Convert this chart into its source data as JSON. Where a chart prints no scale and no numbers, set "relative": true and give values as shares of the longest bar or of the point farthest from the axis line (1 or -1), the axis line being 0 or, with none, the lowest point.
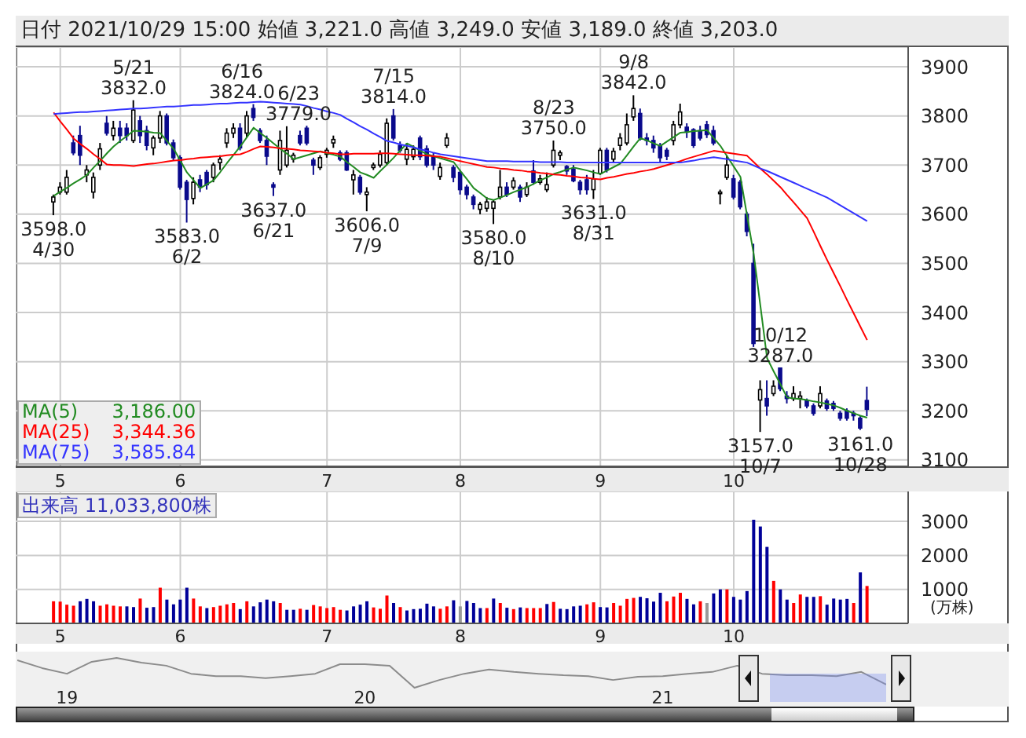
{
  "chart_data": [
    {
      "type": "candlestick",
      "title": "日付 2021/10/29 15:00 始値 3,221.0 高値 3,249.0 安値 3,189.0 終値 3,203.0",
      "colors": [
        "#ffffff",
        "#ffffff",
        "#ffffff",
        "#0a0a8c",
        "#0a0a8c",
        "#ffffff",
        "#ffffff",
        "#ffffff",
        "#0a0a8c",
        "#ffffff",
        "#0a0a8c",
        "#0a0a8c",
        "#ffffff",
        "#0a0a8c",
        "#0a0a8c",
        "#ffffff",
        "#ffffff",
        "#0a0a8c",
        "#0a0a8c",
        "#0a0a8c",
        "#0a0a8c",
        "#ffffff",
        "#0a0a8c",
        "#0a0a8c",
        "#ffffff",
        "#ffffff",
        "#ffffff",
        "#ffffff",
        "#0a0a8c",
        "#ffffff",
        "#0a0a8c",
        "#0a0a8c",
        "#0a0a8c",
        "#0a0a8c",
        "#ffffff",
        "#ffffff",
        "#ffffff",
        "#0a0a8c",
        "#0a0a8c",
        "#0a0a8c",
        "#ffffff",
        "#ffffff",
        "#ffffff",
        "#0a0a8c",
        "#0a0a8c",
        "#ffffff",
        "#0a0a8c",
        "#ffffff",
        "#ffffff",
        "#ffffff",
        "#ffffff",
        "#0a0a8c",
        "#0a0a8c",
        "#ffffff",
        "#ffffff",
        "#0a0a8c",
        "#0a0a8c",
        "#0a0a8c",
        "#ffffff",
        "#ffffff",
        "#0a0a8c",
        "#0a0a8c",
        "#0a0a8c",
        "#0a0a8c",
        "#ffffff",
        "#ffffff",
        "#ffffff",
        "#ffffff",
        "#0a0a8c",
        "#ffffff",
        "#0a0a8c",
        "#ffffff",
        "#0a0a8c",
        "#ffffff",
        "#ffffff",
        "#ffffff",
        "#ffffff",
        "#0a0a8c",
        "#0a0a8c",
        "#0a0a8c",
        "#0a0a8c",
        "#ffffff",
        "#ffffff",
        "#0a0a8c",
        "#ffffff",
        "#ffffff",
        "#ffffff",
        "#ffffff",
        "#0a0a8c",
        "#0a0a8c",
        "#0a0a8c",
        "#0a0a8c",
        "#0a0a8c",
        "#ffffff",
        "#ffffff",
        "#0a0a8c",
        "#0a0a8c",
        "#0a0a8c",
        "#0a0a8c",
        "#0a0a8c",
        "#ffffff",
        "#ffffff",
        "#0a0a8c",
        "#0a0a8c",
        "#0a0a8c",
        "#0a0a8c",
        "#ffffff",
        "#0a0a8c",
        "#ffffff",
        "#0a0a8c",
        "#0a0a8c",
        "#ffffff",
        "#ffffff",
        "#0a0a8c",
        "#0a0a8c",
        "#ffffff",
        "#0a0a8c",
        "#0a0a8c",
        "#0a0a8c",
        "#0a0a8c",
        "#0a0a8c",
        "#0a0a8c",
        "#0a0a8c"
      ],
      "categories": [
        null,
        "5",
        null,
        null,
        null,
        null,
        null,
        null,
        null,
        null,
        null,
        null,
        null,
        null,
        null,
        null,
        null,
        null,
        null,
        "6",
        null,
        null,
        null,
        null,
        null,
        null,
        null,
        null,
        null,
        null,
        null,
        null,
        null,
        null,
        null,
        null,
        null,
        null,
        null,
        null,
        null,
        "7",
        null,
        null,
        null,
        null,
        null,
        null,
        null,
        null,
        null,
        null,
        null,
        null,
        null,
        null,
        null,
        null,
        null,
        null,
        null,
        "8",
        null,
        null,
        null,
        null,
        null,
        null,
        null,
        null,
        null,
        null,
        null,
        null,
        null,
        null,
        null,
        null,
        null,
        null,
        null,
        null,
        "9",
        null,
        null,
        null,
        null,
        null,
        null,
        null,
        null,
        null,
        null,
        null,
        null,
        null,
        null,
        null,
        null,
        null,
        null,
        null,
        "10",
        null,
        null,
        null,
        null,
        null,
        null,
        null,
        null,
        null,
        null,
        null,
        null,
        null,
        null,
        null,
        null,
        null,
        null,
        null,
        null
      ],
      "ohlc": [
        [
          3625,
          3640,
          3598,
          3635
        ],
        [
          3645,
          3665,
          3640,
          3655
        ],
        [
          3645,
          3690,
          3640,
          3675
        ],
        [
          3745,
          3760,
          3720,
          3725
        ],
        [
          3760,
          3780,
          3700,
          3720
        ],
        [
          3680,
          3700,
          3665,
          3690
        ],
        [
          3645,
          3685,
          3632,
          3675
        ],
        [
          3700,
          3745,
          3690,
          3733
        ],
        [
          3785,
          3800,
          3760,
          3765
        ],
        [
          3760,
          3790,
          3750,
          3775
        ],
        [
          3775,
          3790,
          3745,
          3760
        ],
        [
          3775,
          3785,
          3750,
          3760
        ],
        [
          3750,
          3832,
          3745,
          3812
        ],
        [
          3790,
          3800,
          3745,
          3760
        ],
        [
          3770,
          3780,
          3730,
          3740
        ],
        [
          3735,
          3760,
          3720,
          3755
        ],
        [
          3755,
          3810,
          3745,
          3800
        ],
        [
          3800,
          3805,
          3740,
          3745
        ],
        [
          3745,
          3752,
          3710,
          3715
        ],
        [
          3715,
          3720,
          3650,
          3655
        ],
        [
          3665,
          3670,
          3583,
          3630
        ],
        [
          3632,
          3675,
          3620,
          3665
        ],
        [
          3670,
          3680,
          3645,
          3655
        ],
        [
          3685,
          3690,
          3650,
          3660
        ],
        [
          3675,
          3705,
          3665,
          3700
        ],
        [
          3705,
          3720,
          3690,
          3712
        ],
        [
          3745,
          3775,
          3735,
          3765
        ],
        [
          3765,
          3785,
          3755,
          3775
        ],
        [
          3775,
          3785,
          3730,
          3735
        ],
        [
          3765,
          3810,
          3755,
          3800
        ],
        [
          3815,
          3824,
          3790,
          3797
        ],
        [
          3770,
          3775,
          3745,
          3750
        ],
        [
          3750,
          3760,
          3700,
          3718
        ],
        [
          3660,
          3665,
          3637,
          3655
        ],
        [
          3690,
          3770,
          3680,
          3750
        ],
        [
          3700,
          3779,
          3695,
          3730
        ],
        [
          3712,
          3725,
          3705,
          3720
        ],
        [
          3760,
          3770,
          3740,
          3745
        ],
        [
          3775,
          3780,
          3740,
          3745
        ],
        [
          3710,
          3715,
          3680,
          3700
        ],
        [
          3695,
          3720,
          3690,
          3715
        ],
        [
          3722,
          3735,
          3715,
          3730
        ],
        [
          3745,
          3760,
          3735,
          3752
        ],
        [
          3725,
          3730,
          3708,
          3712
        ],
        [
          3725,
          3730,
          3688,
          3690
        ],
        [
          3670,
          3690,
          3640,
          3680
        ],
        [
          3675,
          3680,
          3640,
          3645
        ],
        [
          3640,
          3655,
          3606,
          3645
        ],
        [
          3695,
          3705,
          3690,
          3700
        ],
        [
          3700,
          3730,
          3695,
          3722
        ],
        [
          3705,
          3795,
          3700,
          3785
        ],
        [
          3800,
          3814,
          3750,
          3755
        ],
        [
          3740,
          3748,
          3725,
          3730
        ],
        [
          3712,
          3745,
          3700,
          3732
        ],
        [
          3717,
          3740,
          3710,
          3732
        ],
        [
          3755,
          3760,
          3710,
          3717
        ],
        [
          3733,
          3740,
          3695,
          3700
        ],
        [
          3717,
          3725,
          3690,
          3700
        ],
        [
          3677,
          3705,
          3670,
          3695
        ],
        [
          3740,
          3765,
          3735,
          3755
        ],
        [
          3695,
          3700,
          3665,
          3675
        ],
        [
          3685,
          3690,
          3640,
          3650
        ],
        [
          3655,
          3660,
          3630,
          3640
        ],
        [
          3635,
          3640,
          3610,
          3620
        ],
        [
          3610,
          3625,
          3600,
          3620
        ],
        [
          3612,
          3635,
          3605,
          3625
        ],
        [
          3612,
          3630,
          3580,
          3625
        ],
        [
          3635,
          3690,
          3630,
          3655
        ],
        [
          3655,
          3665,
          3635,
          3640
        ],
        [
          3655,
          3675,
          3650,
          3668
        ],
        [
          3655,
          3660,
          3625,
          3635
        ],
        [
          3640,
          3665,
          3635,
          3655
        ],
        [
          3688,
          3710,
          3660,
          3665
        ],
        [
          3665,
          3680,
          3660,
          3672
        ],
        [
          3650,
          3685,
          3645,
          3660
        ],
        [
          3700,
          3750,
          3695,
          3730
        ],
        [
          3720,
          3730,
          3710,
          3725
        ],
        [
          3697,
          3700,
          3680,
          3688
        ],
        [
          3692,
          3700,
          3665,
          3668
        ],
        [
          3665,
          3670,
          3640,
          3650
        ],
        [
          3670,
          3680,
          3640,
          3650
        ],
        [
          3650,
          3690,
          3631,
          3672
        ],
        [
          3683,
          3735,
          3680,
          3730
        ],
        [
          3730,
          3735,
          3685,
          3690
        ],
        [
          3712,
          3735,
          3705,
          3728
        ],
        [
          3740,
          3765,
          3730,
          3755
        ],
        [
          3745,
          3805,
          3740,
          3782
        ],
        [
          3798,
          3842,
          3790,
          3815
        ],
        [
          3805,
          3815,
          3750,
          3755
        ],
        [
          3755,
          3765,
          3740,
          3750
        ],
        [
          3750,
          3760,
          3725,
          3735
        ],
        [
          3740,
          3745,
          3705,
          3715
        ],
        [
          3730,
          3735,
          3710,
          3718
        ],
        [
          3750,
          3790,
          3740,
          3782
        ],
        [
          3782,
          3825,
          3775,
          3808
        ],
        [
          3777,
          3785,
          3755,
          3767
        ],
        [
          3772,
          3775,
          3735,
          3740
        ],
        [
          3770,
          3780,
          3750,
          3755
        ],
        [
          3782,
          3790,
          3755,
          3762
        ],
        [
          3770,
          3780,
          3740,
          3745
        ],
        [
          3643,
          3650,
          3620,
          3645
        ],
        [
          3675,
          3720,
          3670,
          3700
        ],
        [
          3672,
          3680,
          3630,
          3635
        ],
        [
          3665,
          3670,
          3610,
          3615
        ],
        [
          3600,
          3605,
          3555,
          3565
        ],
        [
          3500,
          3540,
          3330,
          3337
        ],
        [
          3222,
          3262,
          3157,
          3243
        ],
        [
          3225,
          3262,
          3190,
          3210
        ],
        [
          3235,
          3262,
          3230,
          3250
        ],
        [
          3287,
          3287,
          3240,
          3245
        ],
        [
          3230,
          3240,
          3215,
          3225
        ],
        [
          3225,
          3250,
          3220,
          3235
        ],
        [
          3225,
          3240,
          3205,
          3230
        ],
        [
          3220,
          3225,
          3205,
          3210
        ],
        [
          3210,
          3215,
          3190,
          3195
        ],
        [
          3210,
          3250,
          3205,
          3235
        ],
        [
          3220,
          3225,
          3200,
          3205
        ],
        [
          3215,
          3220,
          3200,
          3205
        ],
        [
          3195,
          3200,
          3180,
          3185
        ],
        [
          3200,
          3205,
          3180,
          3185
        ],
        [
          3195,
          3200,
          3180,
          3190
        ],
        [
          3185,
          3190,
          3161,
          3165
        ],
        [
          3221,
          3249,
          3189,
          3203
        ]
      ],
      "series": [
        {
          "name": "MA(5)",
          "type": "line",
          "color": "#228b22",
          "values": [
            3637,
            3646,
            3654,
            3663,
            3671,
            3680,
            3695,
            3709,
            3724,
            3738,
            3749,
            3759,
            3770,
            3769,
            3768,
            3766,
            3765,
            3749,
            3733,
            3709,
            3685,
            3669,
            3653,
            3661,
            3669,
            3686,
            3704,
            3721,
            3738,
            3757,
            3776,
            3765,
            3755,
            3744,
            3733,
            3723,
            3712,
            3716,
            3720,
            3724,
            3728,
            3724,
            3721,
            3717,
            3706,
            3696,
            3685,
            3680,
            3674,
            3688,
            3701,
            3715,
            3730,
            3744,
            3737,
            3729,
            3722,
            3718,
            3714,
            3710,
            3706,
            3688,
            3671,
            3653,
            3643,
            3632,
            3629,
            3634,
            3639,
            3645,
            3650,
            3655,
            3662,
            3669,
            3675,
            3682,
            3686,
            3691,
            3695,
            3692,
            3689,
            3685,
            3682,
            3689,
            3696,
            3703,
            3720,
            3738,
            3755,
            3750,
            3744,
            3739,
            3748,
            3757,
            3766,
            3767,
            3769,
            3770,
            3771,
            3755,
            3739,
            3718,
            3697,
            3676,
            3597,
            3518,
            3413,
            3307,
            3280,
            3254,
            3227,
            3225,
            3224,
            3222,
            3219,
            3217,
            3214,
            3211,
            3206,
            3200,
            3195,
            3190,
            3186
          ]
        },
        {
          "name": "MA(25)",
          "type": "line",
          "color": "#ff0000",
          "values": [
            3807,
            3789,
            3772,
            3754,
            3743,
            3733,
            3722,
            3712,
            3701,
            3700,
            3700,
            3699,
            3698,
            3700,
            3702,
            3703,
            3705,
            3707,
            3709,
            3710,
            3712,
            3713,
            3715,
            3716,
            3717,
            3718,
            3720,
            3721,
            3722,
            3727,
            3733,
            3738,
            3737,
            3736,
            3734,
            3733,
            3732,
            3730,
            3729,
            3728,
            3727,
            3725,
            3724,
            3722,
            3722,
            3723,
            3723,
            3723,
            3723,
            3724,
            3724,
            3723,
            3722,
            3721,
            3720,
            3720,
            3719,
            3718,
            3717,
            3714,
            3711,
            3708,
            3705,
            3702,
            3699,
            3696,
            3695,
            3693,
            3692,
            3690,
            3689,
            3687,
            3686,
            3684,
            3683,
            3681,
            3680,
            3678,
            3677,
            3675,
            3674,
            3672,
            3671,
            3674,
            3676,
            3679,
            3682,
            3684,
            3687,
            3689,
            3692,
            3696,
            3700,
            3704,
            3708,
            3713,
            3717,
            3721,
            3725,
            3729,
            3727,
            3725,
            3723,
            3721,
            3719,
            3706,
            3693,
            3681,
            3668,
            3655,
            3639,
            3624,
            3608,
            3592,
            3564,
            3535,
            3507,
            3480,
            3453,
            3425,
            3398,
            3371,
            3344
          ]
        },
        {
          "name": "MA(75)",
          "type": "line",
          "color": "#3333ff",
          "values": [
            3804,
            3805,
            3806,
            3807,
            3808,
            3808,
            3809,
            3810,
            3811,
            3812,
            3813,
            3814,
            3815,
            3815,
            3816,
            3817,
            3818,
            3819,
            3819,
            3820,
            3821,
            3822,
            3822,
            3823,
            3824,
            3825,
            3825,
            3826,
            3827,
            3827,
            3828,
            3829,
            3828,
            3827,
            3826,
            3825,
            3824,
            3823,
            3820,
            3816,
            3813,
            3809,
            3806,
            3802,
            3794,
            3787,
            3779,
            3772,
            3764,
            3757,
            3749,
            3746,
            3742,
            3739,
            3736,
            3732,
            3729,
            3725,
            3722,
            3720,
            3718,
            3716,
            3714,
            3712,
            3710,
            3708,
            3708,
            3708,
            3708,
            3707,
            3707,
            3707,
            3707,
            3706,
            3706,
            3706,
            3706,
            3705,
            3705,
            3705,
            3705,
            3705,
            3705,
            3705,
            3705,
            3705,
            3705,
            3705,
            3705,
            3705,
            3705,
            3705,
            3705,
            3705,
            3705,
            3707,
            3709,
            3712,
            3714,
            3716,
            3714,
            3712,
            3709,
            3707,
            3705,
            3699,
            3693,
            3688,
            3682,
            3676,
            3670,
            3664,
            3658,
            3652,
            3646,
            3640,
            3634,
            3626,
            3618,
            3610,
            3602,
            3594,
            3586
          ]
        }
      ],
      "annotations": [
        {
          "text": "3598.0\n4/30",
          "y": 3598
        },
        {
          "text": "5/21\n3832.0",
          "y": 3832
        },
        {
          "text": "3583.0\n6/2",
          "y": 3583
        },
        {
          "text": "6/16\n3824.0",
          "y": 3824
        },
        {
          "text": "3637.0\n6/21",
          "y": 3637
        },
        {
          "text": "6/23\n3779.0",
          "y": 3779
        },
        {
          "text": "3606.0\n7/9",
          "y": 3606
        },
        {
          "text": "7/15\n3814.0",
          "y": 3814
        },
        {
          "text": "3580.0\n8/10",
          "y": 3580
        },
        {
          "text": "8/23\n3750.0",
          "y": 3750
        },
        {
          "text": "3631.0\n8/31",
          "y": 3631
        },
        {
          "text": "9/8\n3842.0",
          "y": 3842
        },
        {
          "text": "3157.0\n10/7",
          "y": 3157
        },
        {
          "text": "10/12\n3287.0",
          "y": 3287
        },
        {
          "text": "3161.0\n10/28",
          "y": 3161
        },
        "3,186.00",
        "3,344.36",
        "3,585.84"
      ],
      "ylim": [
        3087,
        3940
      ],
      "yticks": [
        3100,
        3200,
        3300,
        3400,
        3500,
        3600,
        3700,
        3800,
        3900
      ],
      "grid": true,
      "legend": "bottom left"
    },
    {
      "type": "bar",
      "title": "出来高 11,033,800株",
      "ylabel": "(万株)",
      "categories": [
        null,
        "5",
        null,
        null,
        null,
        null,
        null,
        null,
        null,
        null,
        null,
        null,
        null,
        null,
        null,
        null,
        null,
        null,
        null,
        "6",
        null,
        null,
        null,
        null,
        null,
        null,
        null,
        null,
        null,
        null,
        null,
        null,
        null,
        null,
        null,
        null,
        null,
        null,
        null,
        null,
        null,
        "7",
        null,
        null,
        null,
        null,
        null,
        null,
        null,
        null,
        null,
        null,
        null,
        null,
        null,
        null,
        null,
        null,
        null,
        null,
        null,
        "8",
        null,
        null,
        null,
        null,
        null,
        null,
        null,
        null,
        null,
        null,
        null,
        null,
        null,
        null,
        null,
        null,
        null,
        null,
        null,
        null,
        "9",
        null,
        null,
        null,
        null,
        null,
        null,
        null,
        null,
        null,
        null,
        null,
        null,
        null,
        null,
        null,
        null,
        null,
        null,
        null,
        "10",
        null,
        null,
        null,
        null,
        null,
        null,
        null,
        null,
        null,
        null,
        null,
        null,
        null,
        null,
        null,
        null,
        null,
        null,
        null,
        null
      ],
      "values": [
        650,
        640,
        550,
        520,
        650,
        720,
        650,
        520,
        560,
        520,
        500,
        500,
        480,
        730,
        460,
        480,
        1050,
        700,
        560,
        700,
        1050,
        730,
        500,
        450,
        480,
        520,
        560,
        600,
        420,
        650,
        500,
        620,
        700,
        650,
        600,
        400,
        400,
        430,
        400,
        540,
        500,
        450,
        480,
        400,
        380,
        500,
        550,
        650,
        470,
        430,
        820,
        600,
        480,
        380,
        420,
        430,
        580,
        500,
        430,
        500,
        680,
        500,
        660,
        600,
        450,
        450,
        730,
        600,
        460,
        420,
        470,
        450,
        450,
        450,
        570,
        630,
        430,
        420,
        500,
        520,
        560,
        620,
        480,
        470,
        600,
        520,
        720,
        750,
        780,
        740,
        640,
        900,
        650,
        790,
        900,
        720,
        560,
        650,
        600,
        880,
        1000,
        1000,
        780,
        700,
        950,
        3050,
        2850,
        2250,
        1250,
        1000,
        700,
        600,
        850,
        780,
        780,
        800,
        550,
        730,
        700,
        720,
        600,
        1500,
        1100
      ],
      "colors": [
        "#ff0000",
        "#ff0000",
        "#ff0000",
        "#ff0000",
        "#000099",
        "#000099",
        "#000099",
        "#ff0000",
        "#ff0000",
        "#ff0000",
        "#ff0000",
        "#000099",
        "#000099",
        "#ff0000",
        "#000099",
        "#000099",
        "#ff0000",
        "#000099",
        "#000099",
        "#000099",
        "#000099",
        "#ff0000",
        "#ff0000",
        "#000099",
        "#ff0000",
        "#ff0000",
        "#ff0000",
        "#ff0000",
        "#000099",
        "#ff0000",
        "#000099",
        "#000099",
        "#000099",
        "#000099",
        "#ff0000",
        "#000099",
        "#000099",
        "#ff0000",
        "#000099",
        "#ff0000",
        "#ff0000",
        "#ff0000",
        "#ff0000",
        "#ff0000",
        "#000099",
        "#000099",
        "#000099",
        "#000099",
        "#ff0000",
        "#ff0000",
        "#ff0000",
        "#000099",
        "#ff0000",
        "#000099",
        "#000099",
        "#000099",
        "#000099",
        "#000099",
        "#ff0000",
        "#ff0000",
        "#000099",
        "#999999",
        "#000099",
        "#000099",
        "#000099",
        "#ff0000",
        "#000099",
        "#ff0000",
        "#000099",
        "#ff0000",
        "#000099",
        "#ff0000",
        "#ff0000",
        "#ff0000",
        "#000099",
        "#ff0000",
        "#000099",
        "#000099",
        "#000099",
        "#000099",
        "#ff0000",
        "#ff0000",
        "#000099",
        "#000099",
        "#ff0000",
        "#ff0000",
        "#ff0000",
        "#ff0000",
        "#000099",
        "#000099",
        "#000099",
        "#000099",
        "#ff0000",
        "#ff0000",
        "#ff0000",
        "#000099",
        "#000099",
        "#ff0000",
        "#999999",
        "#000099",
        "#000099",
        "#ff0000",
        "#000099",
        "#000099",
        "#000099",
        "#000099",
        "#000099",
        "#000099",
        "#ff0000",
        "#000099",
        "#000099",
        "#ff0000",
        "#ff0000",
        "#000099",
        "#000099",
        "#ff0000",
        "#000099",
        "#000099",
        "#000099",
        "#000099",
        "#ff0000",
        "#000099",
        "#ff0000"
      ],
      "ylim": [
        0,
        3880
      ],
      "yticks": [
        1000,
        2000,
        3000
      ],
      "grid": true
    },
    {
      "type": "line",
      "relative": true,
      "tick_labels": "x",
      "categories": [
        null,
        null,
        "19",
        null,
        null,
        null,
        null,
        null,
        null,
        null,
        null,
        null,
        null,
        null,
        "20",
        null,
        null,
        null,
        null,
        null,
        null,
        null,
        null,
        null,
        null,
        null,
        "21",
        null,
        null,
        null,
        null,
        null,
        null,
        null,
        null,
        null
      ],
      "series": [
        {
          "type": "line",
          "color": "#8c8c8c",
          "values": [
            0.92,
            0.66,
            0.47,
            0.87,
            1,
            0.84,
            0.74,
            0.47,
            0.39,
            0.39,
            0.32,
            0.39,
            0.47,
            0.79,
            0.79,
            0.74,
            0,
            0.26,
            0.47,
            0.61,
            0.53,
            0.47,
            0.42,
            0.39,
            0.26,
            0.37,
            0.39,
            0.47,
            0.53,
            0.74,
            0.47,
            0.42,
            0.42,
            0.39,
            0.53,
            0.11
          ]
        }
      ]
    }
  ]
}
